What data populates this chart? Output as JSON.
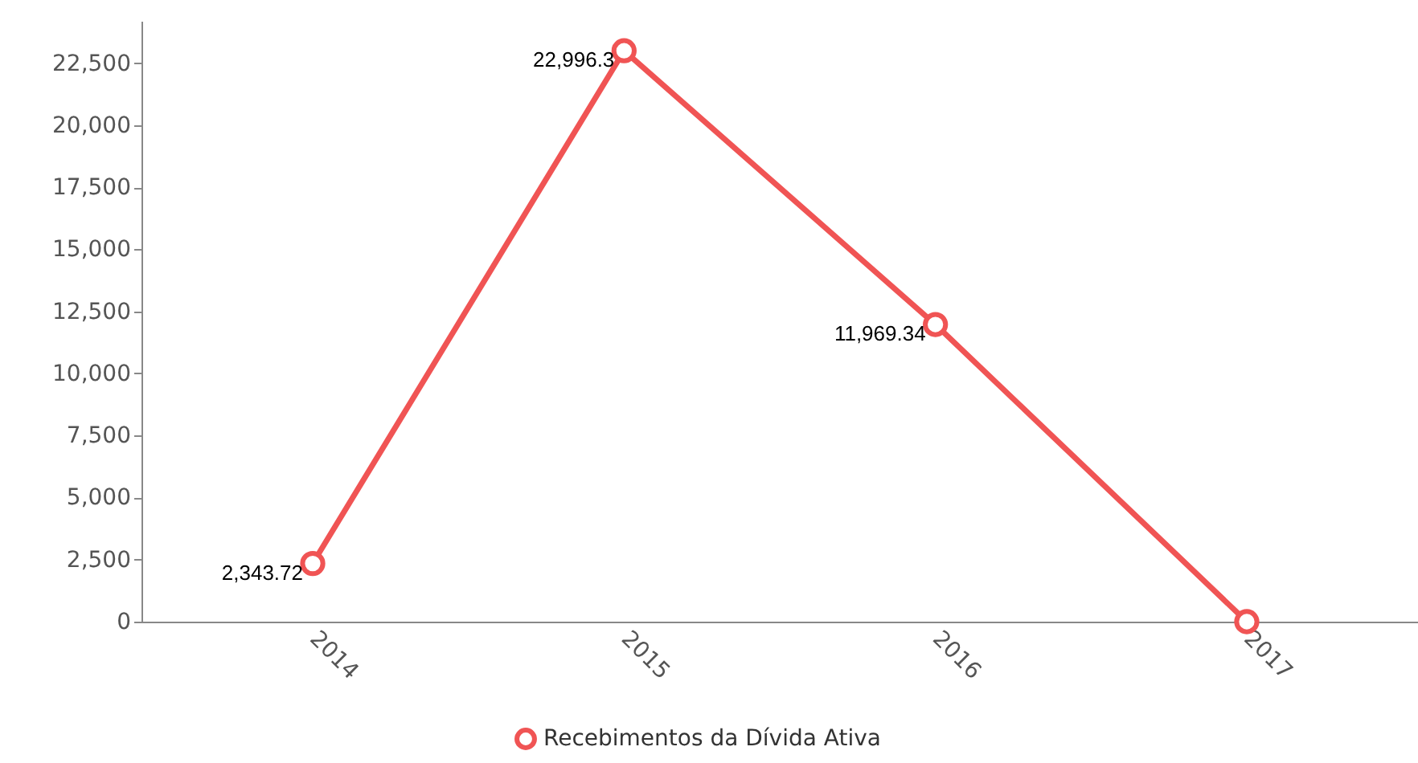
{
  "chart_data": {
    "type": "line",
    "categories": [
      "2014",
      "2015",
      "2016",
      "2017"
    ],
    "series": [
      {
        "name": "Recebimentos da Dívida Ativa",
        "color": "#f05454",
        "values": [
          2343.72,
          22996.3,
          11969.34,
          0
        ],
        "value_labels": [
          "2,343.72",
          "22,996.3",
          "11,969.34",
          null
        ]
      }
    ],
    "ylim": [
      0,
      24200
    ],
    "yticks": [
      0,
      {
        "value": 2500,
        "label": "2,500"
      },
      {
        "value": 5000,
        "label": "5,000"
      },
      {
        "value": 7500,
        "label": "7,500"
      },
      {
        "value": 10000,
        "label": "10,000"
      },
      {
        "value": 12500,
        "label": "12,500"
      },
      {
        "value": 15000,
        "label": "15,000"
      },
      {
        "value": 17500,
        "label": "17,500"
      },
      {
        "value": 20000,
        "label": "20,000"
      },
      {
        "value": 22500,
        "label": "22,500"
      }
    ],
    "grid": false,
    "legend": "bottom",
    "marker": "circle",
    "line_style": "solid"
  }
}
